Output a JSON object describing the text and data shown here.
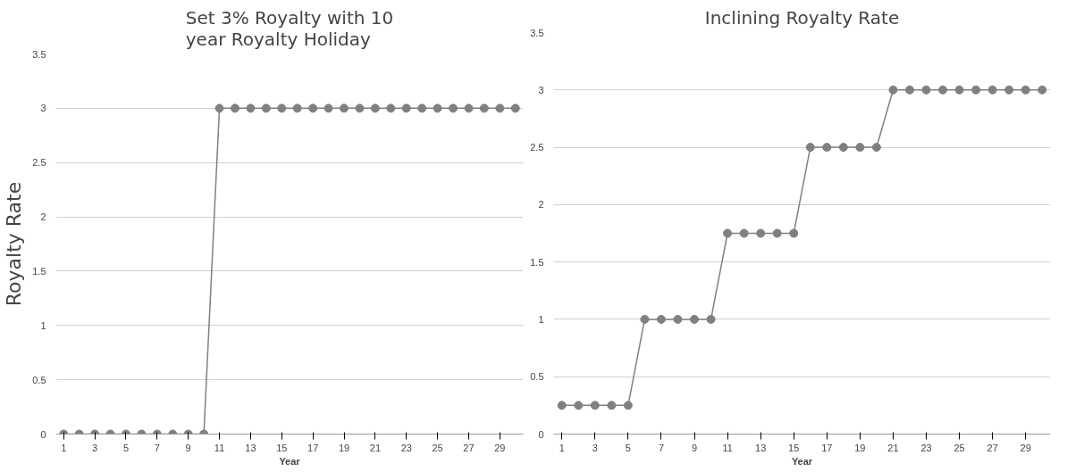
{
  "chart_data": [
    {
      "type": "line",
      "title": "Set 3% Royalty with 10 year Royalty Holiday",
      "xlabel": "Year",
      "ylabel": "Royalty Rate",
      "x": [
        1,
        2,
        3,
        4,
        5,
        6,
        7,
        8,
        9,
        10,
        11,
        12,
        13,
        14,
        15,
        16,
        17,
        18,
        19,
        20,
        21,
        22,
        23,
        24,
        25,
        26,
        27,
        28,
        29,
        30
      ],
      "series": [
        {
          "color": "#808080",
          "values": [
            0,
            0,
            0,
            0,
            0,
            0,
            0,
            0,
            0,
            0,
            3,
            3,
            3,
            3,
            3,
            3,
            3,
            3,
            3,
            3,
            3,
            3,
            3,
            3,
            3,
            3,
            3,
            3,
            3,
            3
          ]
        }
      ],
      "xlim": [
        0.5,
        30.5
      ],
      "xticks": [
        1,
        3,
        5,
        7,
        9,
        11,
        13,
        15,
        17,
        19,
        21,
        23,
        25,
        27,
        29
      ],
      "ylim": [
        0,
        3.5
      ],
      "yticks": [
        0,
        0.5,
        1,
        1.5,
        2,
        2.5,
        3,
        3.5
      ],
      "grid": "y",
      "marker": "circle",
      "line_style": "solid"
    },
    {
      "type": "line",
      "title": "Inclining Royalty Rate",
      "xlabel": "Year",
      "x": [
        1,
        2,
        3,
        4,
        5,
        6,
        7,
        8,
        9,
        10,
        11,
        12,
        13,
        14,
        15,
        16,
        17,
        18,
        19,
        20,
        21,
        22,
        23,
        24,
        25,
        26,
        27,
        28,
        29,
        30
      ],
      "series": [
        {
          "color": "#808080",
          "values": [
            0.25,
            0.25,
            0.25,
            0.25,
            0.25,
            1,
            1,
            1,
            1,
            1,
            1.75,
            1.75,
            1.75,
            1.75,
            1.75,
            2.5,
            2.5,
            2.5,
            2.5,
            2.5,
            3,
            3,
            3,
            3,
            3,
            3,
            3,
            3,
            3,
            3
          ]
        }
      ],
      "xlim": [
        0.5,
        30.5
      ],
      "xticks": [
        1,
        3,
        5,
        7,
        9,
        11,
        13,
        15,
        17,
        19,
        21,
        23,
        25,
        27,
        29
      ],
      "ylim": [
        0,
        3.5
      ],
      "yticks": [
        0,
        0.5,
        1,
        1.5,
        2,
        2.5,
        3,
        3.5
      ],
      "grid": "y",
      "marker": "circle",
      "line_style": "solid"
    }
  ]
}
